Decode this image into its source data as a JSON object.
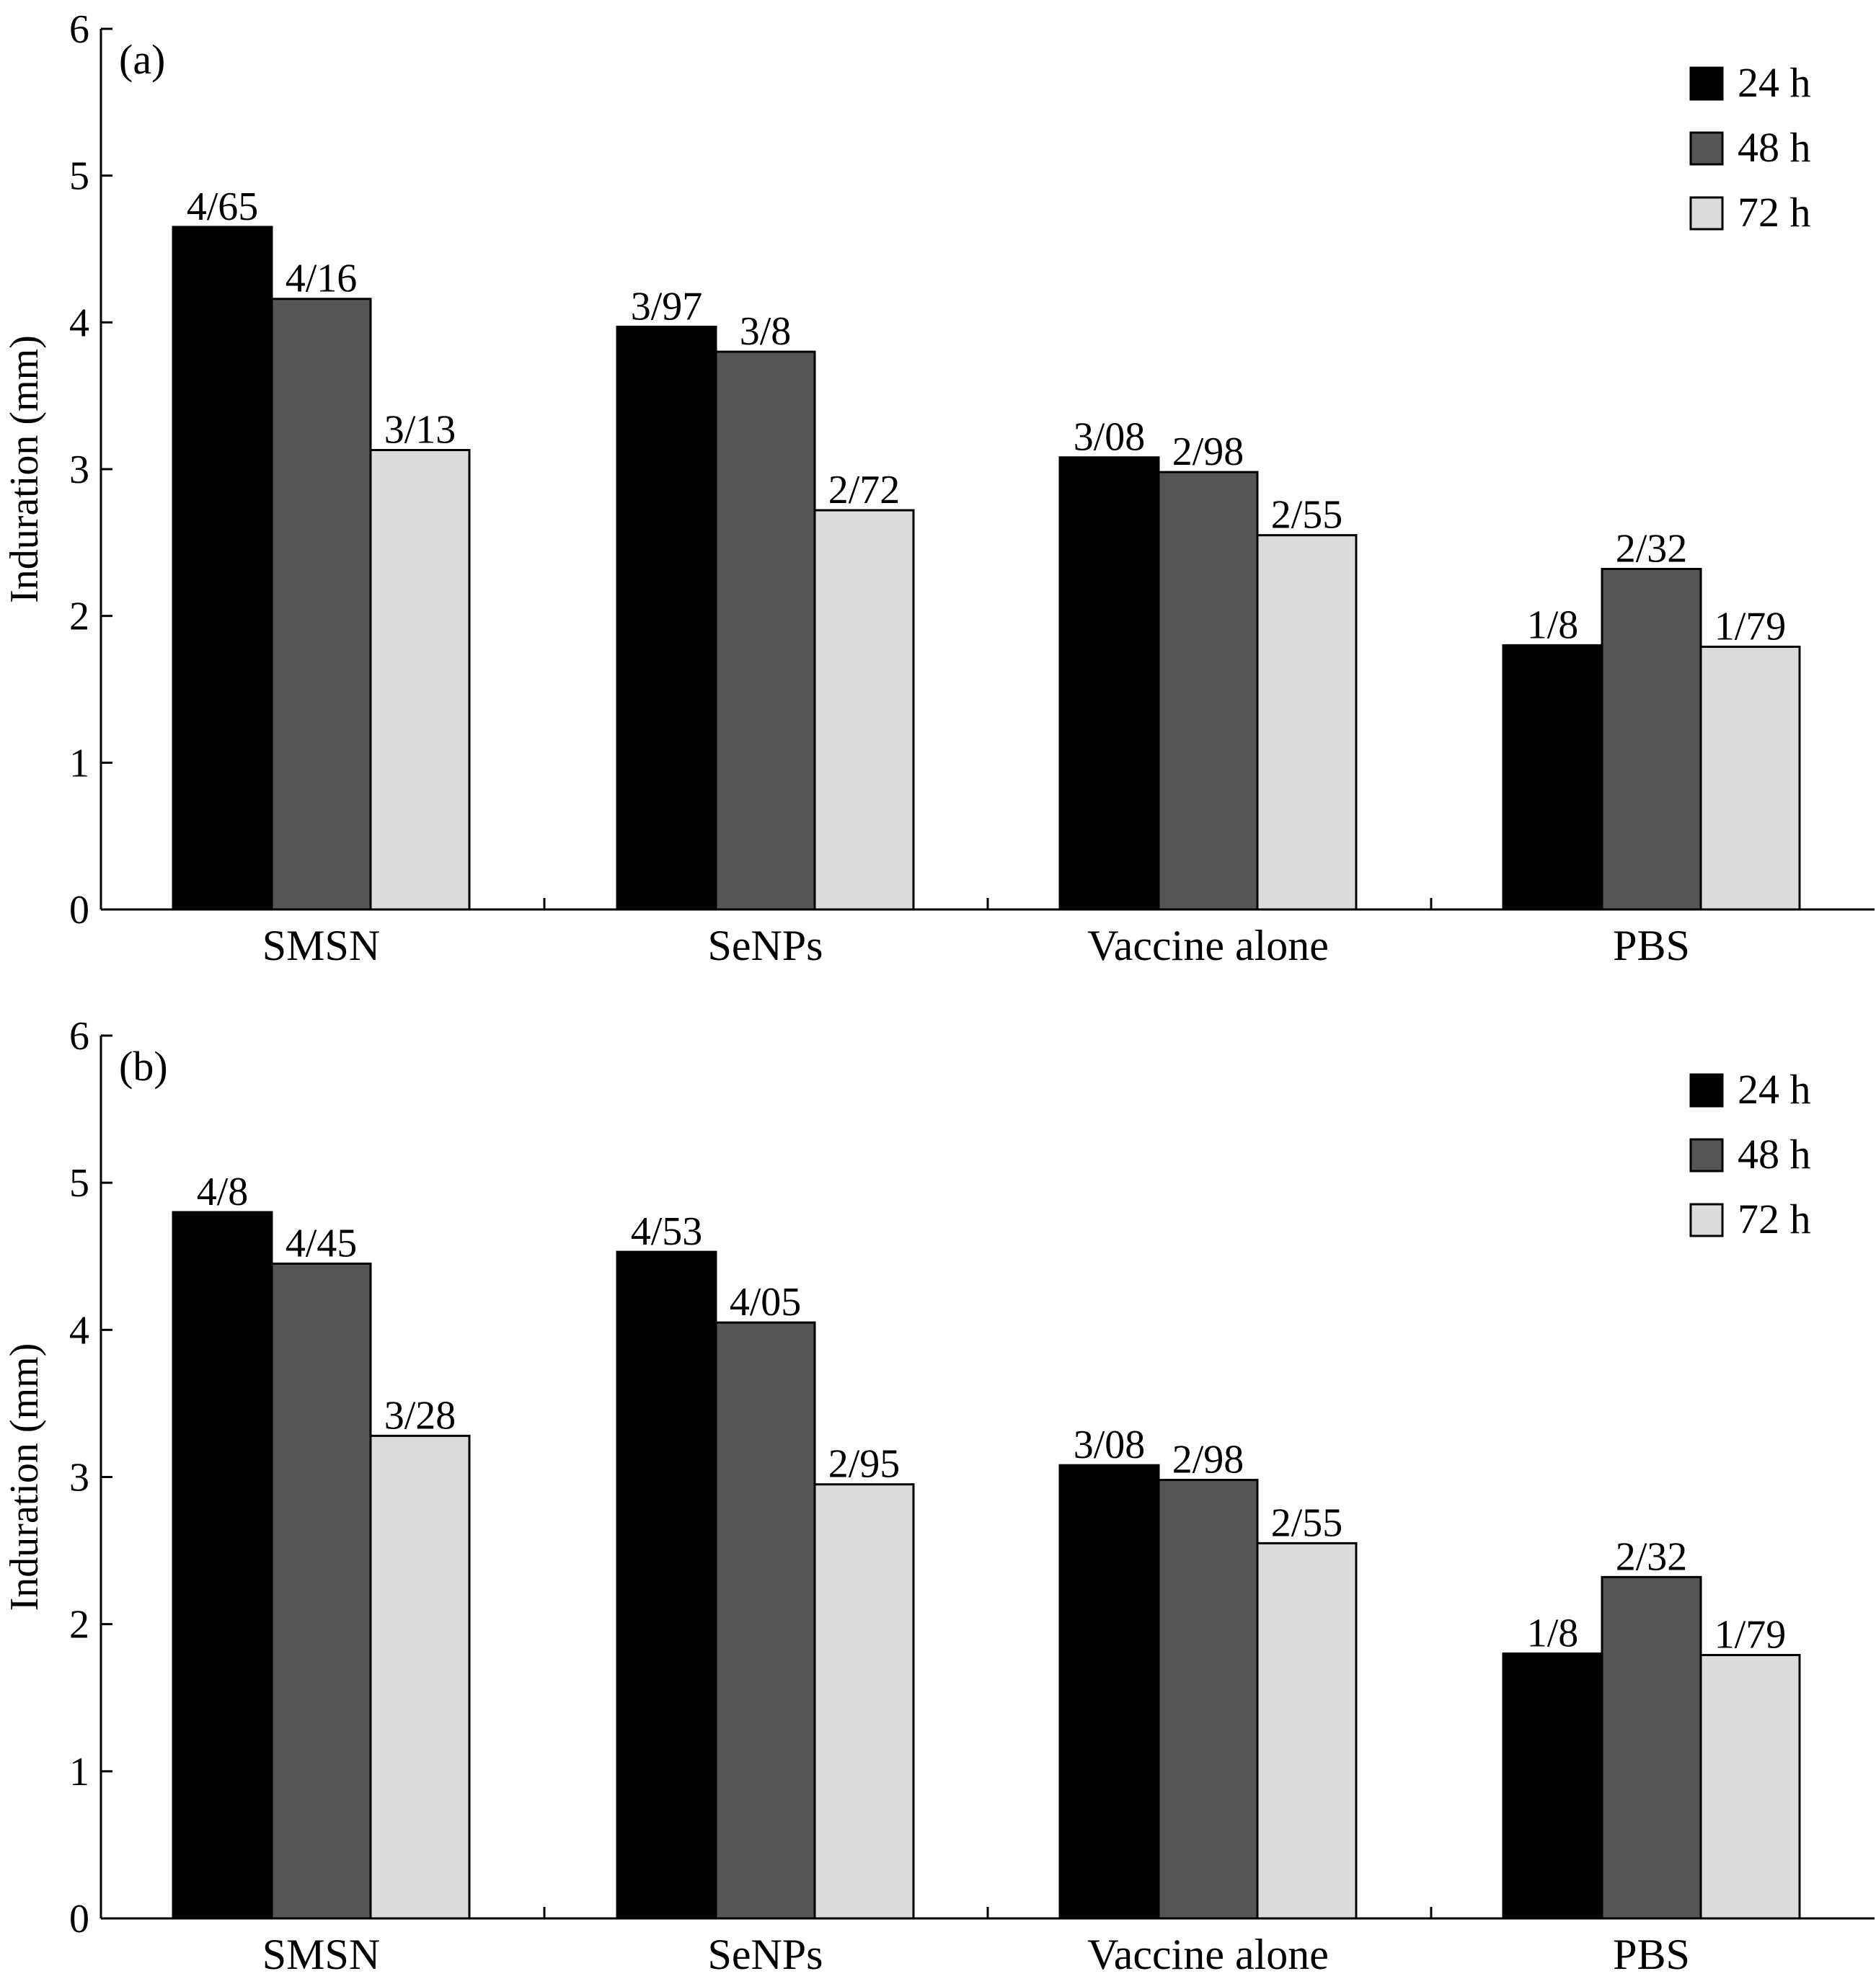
{
  "colors": {
    "series": [
      "#000000",
      "#555555",
      "#dcdcdc"
    ],
    "axis": "#000000",
    "bar_edge": "#000000"
  },
  "chart_data": [
    {
      "type": "bar",
      "panel_label": "(a)",
      "ylabel": "Induration (mm)",
      "xlabel": "",
      "ylim": [
        0,
        6
      ],
      "yticks": [
        "0",
        "1",
        "2",
        "3",
        "4",
        "5",
        "6"
      ],
      "grid": false,
      "legend_position": "top-right",
      "categories": [
        "SMSN",
        "SeNPs",
        "Vaccine alone",
        "PBS"
      ],
      "series": [
        {
          "name": "24 h",
          "values": [
            4.65,
            3.97,
            3.08,
            1.8
          ],
          "labels": [
            "4/65",
            "3/97",
            "3/08",
            "1/8"
          ]
        },
        {
          "name": "48 h",
          "values": [
            4.16,
            3.8,
            2.98,
            2.32
          ],
          "labels": [
            "4/16",
            "3/8",
            "2/98",
            "2/32"
          ]
        },
        {
          "name": "72 h",
          "values": [
            3.13,
            2.72,
            2.55,
            1.79
          ],
          "labels": [
            "3/13",
            "2/72",
            "2/55",
            "1/79"
          ]
        }
      ]
    },
    {
      "type": "bar",
      "panel_label": "(b)",
      "ylabel": "Induration (mm)",
      "xlabel": "",
      "ylim": [
        0,
        6
      ],
      "yticks": [
        "0",
        "1",
        "2",
        "3",
        "4",
        "5",
        "6"
      ],
      "grid": false,
      "legend_position": "top-right",
      "categories": [
        "SMSN",
        "SeNPs",
        "Vaccine alone",
        "PBS"
      ],
      "series": [
        {
          "name": "24 h",
          "values": [
            4.8,
            4.53,
            3.08,
            1.8
          ],
          "labels": [
            "4/8",
            "4/53",
            "3/08",
            "1/8"
          ]
        },
        {
          "name": "48 h",
          "values": [
            4.45,
            4.05,
            2.98,
            2.32
          ],
          "labels": [
            "4/45",
            "4/05",
            "2/98",
            "2/32"
          ]
        },
        {
          "name": "72 h",
          "values": [
            3.28,
            2.95,
            2.55,
            1.79
          ],
          "labels": [
            "3/28",
            "2/95",
            "2/55",
            "1/79"
          ]
        }
      ]
    }
  ]
}
